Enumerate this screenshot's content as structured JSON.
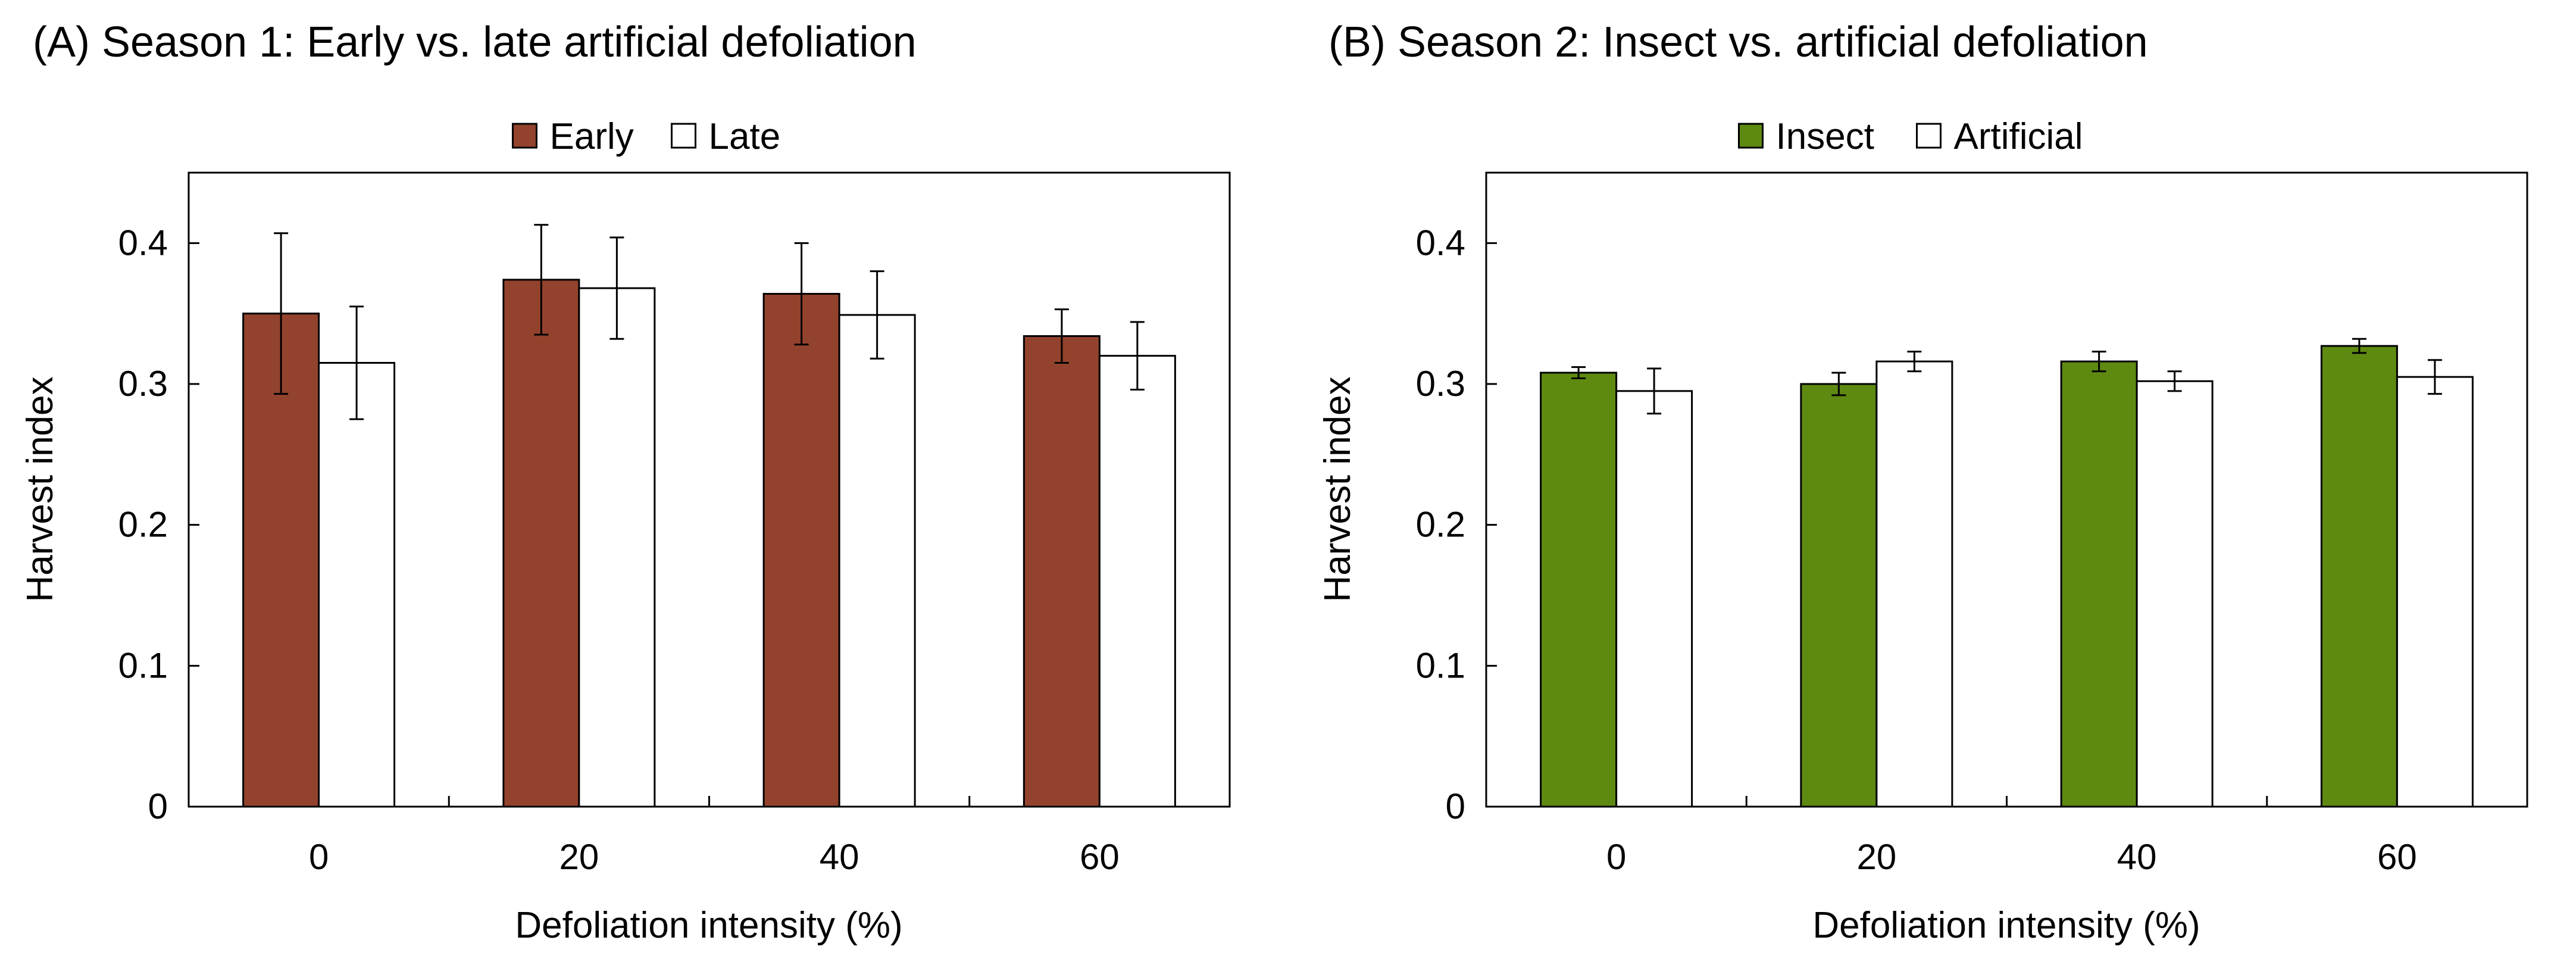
{
  "chart_data": [
    {
      "type": "bar",
      "title": "(A) Season 1: Early vs. late artificial defoliation",
      "xlabel": "Defoliation intensity (%)",
      "ylabel": "Harvest index",
      "categories": [
        "0",
        "20",
        "40",
        "60"
      ],
      "ylim": [
        0,
        0.45
      ],
      "yticks": [
        0,
        0.1,
        0.2,
        0.3,
        0.4
      ],
      "ytick_labels": [
        "0",
        "0.1",
        "0.2",
        "0.3",
        "0.4"
      ],
      "legend_position": "top-center",
      "series": [
        {
          "name": "Early",
          "color": "#93432D",
          "values": [
            0.35,
            0.374,
            0.364,
            0.334
          ],
          "errors": [
            0.057,
            0.039,
            0.036,
            0.019
          ]
        },
        {
          "name": "Late",
          "color": "#FFFFFF",
          "values": [
            0.315,
            0.368,
            0.349,
            0.32
          ],
          "errors": [
            0.04,
            0.036,
            0.031,
            0.024
          ]
        }
      ]
    },
    {
      "type": "bar",
      "title": "(B) Season 2: Insect vs. artificial defoliation",
      "xlabel": "Defoliation intensity (%)",
      "ylabel": "Harvest index",
      "categories": [
        "0",
        "20",
        "40",
        "60"
      ],
      "ylim": [
        0,
        0.45
      ],
      "yticks": [
        0,
        0.1,
        0.2,
        0.3,
        0.4
      ],
      "ytick_labels": [
        "0",
        "0.1",
        "0.2",
        "0.3",
        "0.4"
      ],
      "legend_position": "top-center",
      "series": [
        {
          "name": "Insect",
          "color": "#5E8A12",
          "values": [
            0.308,
            0.3,
            0.316,
            0.327
          ],
          "errors": [
            0.004,
            0.008,
            0.007,
            0.005
          ]
        },
        {
          "name": "Artificial",
          "color": "#FFFFFF",
          "values": [
            0.295,
            0.316,
            0.302,
            0.305
          ],
          "errors": [
            0.016,
            0.007,
            0.007,
            0.012
          ]
        }
      ]
    }
  ]
}
